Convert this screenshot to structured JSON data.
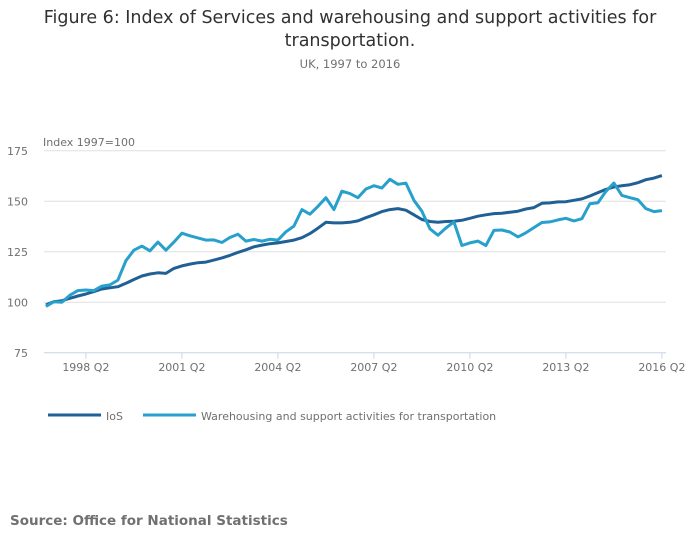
{
  "chart_data": {
    "type": "line",
    "title": "Figure 6: Index of Services and warehousing and support activities for transportation.",
    "subtitle": "UK, 1997 to 2016",
    "ylabel": "Index 1997=100",
    "xlabel": "",
    "ylim": [
      75,
      175
    ],
    "yticks": [
      "175",
      "150",
      "125",
      "100",
      "75"
    ],
    "xticks": [
      "1998 Q2",
      "2001 Q2",
      "2004 Q2",
      "2007 Q2",
      "2010 Q2",
      "2013 Q2",
      "2016 Q2"
    ],
    "grid": true,
    "legend": "bottom-left",
    "x": [
      "1997 Q1",
      "1997 Q2",
      "1997 Q3",
      "1997 Q4",
      "1998 Q1",
      "1998 Q2",
      "1998 Q3",
      "1998 Q4",
      "1999 Q1",
      "1999 Q2",
      "1999 Q3",
      "1999 Q4",
      "2000 Q1",
      "2000 Q2",
      "2000 Q3",
      "2000 Q4",
      "2001 Q1",
      "2001 Q2",
      "2001 Q3",
      "2001 Q4",
      "2002 Q1",
      "2002 Q2",
      "2002 Q3",
      "2002 Q4",
      "2003 Q1",
      "2003 Q2",
      "2003 Q3",
      "2003 Q4",
      "2004 Q1",
      "2004 Q2",
      "2004 Q3",
      "2004 Q4",
      "2005 Q1",
      "2005 Q2",
      "2005 Q3",
      "2005 Q4",
      "2006 Q1",
      "2006 Q2",
      "2006 Q3",
      "2006 Q4",
      "2007 Q1",
      "2007 Q2",
      "2007 Q3",
      "2007 Q4",
      "2008 Q1",
      "2008 Q2",
      "2008 Q3",
      "2008 Q4",
      "2009 Q1",
      "2009 Q2",
      "2009 Q3",
      "2009 Q4",
      "2010 Q1",
      "2010 Q2",
      "2010 Q3",
      "2010 Q4",
      "2011 Q1",
      "2011 Q2",
      "2011 Q3",
      "2011 Q4",
      "2012 Q1",
      "2012 Q2",
      "2012 Q3",
      "2012 Q4",
      "2013 Q1",
      "2013 Q2",
      "2013 Q3",
      "2013 Q4",
      "2014 Q1",
      "2014 Q2",
      "2014 Q3",
      "2014 Q4",
      "2015 Q1",
      "2015 Q2",
      "2015 Q3",
      "2015 Q4",
      "2016 Q1",
      "2016 Q2"
    ],
    "series": [
      {
        "name": "IoS",
        "color": "#206095",
        "values": [
          98.7,
          100.3,
          100.8,
          102,
          103.1,
          104.1,
          105.3,
          106.6,
          107.2,
          107.7,
          109.4,
          111.3,
          113,
          114,
          114.6,
          114.3,
          116.8,
          118,
          118.9,
          119.6,
          119.9,
          120.9,
          122,
          123.2,
          124.7,
          126,
          127.5,
          128.3,
          129,
          129.4,
          130.1,
          130.8,
          132,
          134,
          136.7,
          139.6,
          139.3,
          139.3,
          139.6,
          140.3,
          141.9,
          143.3,
          144.9,
          145.9,
          146.4,
          145.6,
          143.3,
          141,
          140,
          139.6,
          140,
          140.1,
          140.6,
          141.6,
          142.6,
          143.3,
          143.9,
          144.1,
          144.6,
          145.1,
          146.2,
          146.9,
          149,
          149.2,
          149.7,
          149.8,
          150.5,
          151.2,
          152.6,
          154.3,
          155.9,
          157.1,
          157.7,
          158.2,
          159.2,
          160.7,
          161.5,
          162.7
        ]
      },
      {
        "name": "Warehousing and support activities for transportation",
        "color": "#27a0cc",
        "values": [
          97.9,
          100.3,
          100,
          103.5,
          105.8,
          106.1,
          105.8,
          108,
          108.6,
          111,
          120.6,
          125.8,
          127.8,
          125.5,
          129.8,
          125.8,
          129.8,
          134.2,
          132.9,
          131.9,
          130.8,
          130.9,
          129.6,
          132.1,
          133.7,
          130.3,
          131.1,
          130.3,
          131.2,
          130.8,
          134.9,
          137.7,
          145.9,
          143.6,
          147.5,
          151.8,
          145.9,
          155,
          153.8,
          151.8,
          156.1,
          157.7,
          156.6,
          160.9,
          158.4,
          159,
          150.5,
          145.1,
          136.4,
          133.2,
          136.8,
          139.8,
          128.1,
          129.4,
          130.3,
          128.1,
          135.6,
          135.8,
          134.8,
          132.4,
          134.4,
          137,
          139.5,
          139.8,
          140.8,
          141.6,
          140.3,
          141.4,
          148.8,
          149.3,
          154.9,
          159,
          152.9,
          151.8,
          150.8,
          146.4,
          144.9,
          145.4
        ]
      }
    ]
  },
  "source": "Source: Office for National Statistics"
}
